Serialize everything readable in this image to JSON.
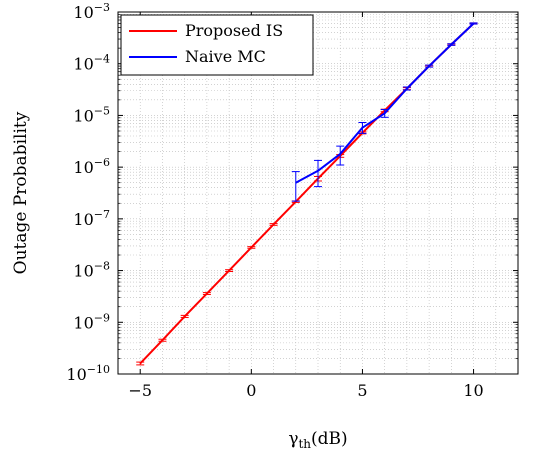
{
  "chart_data": {
    "type": "line",
    "xlabel_main": "γ",
    "xlabel_sub": "th",
    "xlabel_unit": "(dB)",
    "ylabel": "Outage Probability",
    "xlim": [
      -6,
      12
    ],
    "ylim_log10": [
      -10,
      -3
    ],
    "yscale": "log",
    "grid": true,
    "legend_position": "top-left",
    "x_ticks": [
      -5,
      0,
      5,
      10
    ],
    "y_tick_exponents": [
      -10,
      -9,
      -8,
      -7,
      -6,
      -5,
      -4,
      -3
    ],
    "y_tick_base": "10",
    "series": [
      {
        "name": "Proposed IS",
        "color": "#ff0000",
        "x": [
          -5,
          -4,
          -3,
          -2,
          -1,
          0,
          1,
          2,
          3,
          4,
          5,
          6,
          7,
          8,
          9,
          10
        ],
        "y": [
          1.6e-10,
          4.5e-10,
          1.3e-09,
          3.6e-09,
          1e-08,
          2.8e-08,
          7.8e-08,
          2.15e-07,
          6e-07,
          1.65e-06,
          4.6e-06,
          1.25e-05,
          3.3e-05,
          9e-05,
          0.000235,
          0.0006
        ],
        "err_low": [
          1.5e-10,
          4.3e-10,
          1.24e-09,
          3.45e-09,
          9.6e-09,
          2.7e-08,
          7.5e-08,
          2.08e-07,
          5.4e-07,
          1.55e-06,
          4.4e-06,
          1.18e-05,
          3.15e-05,
          8.7e-05,
          0.000228,
          0.000585
        ],
        "err_high": [
          1.7e-10,
          4.7e-10,
          1.36e-09,
          3.75e-09,
          1.04e-08,
          2.9e-08,
          8.1e-08,
          2.22e-07,
          6.6e-07,
          1.75e-06,
          4.8e-06,
          1.32e-05,
          3.45e-05,
          9.3e-05,
          0.000242,
          0.000615
        ]
      },
      {
        "name": "Naive MC",
        "color": "#0000ff",
        "x": [
          2,
          3,
          4,
          5,
          6,
          7,
          8,
          9,
          10
        ],
        "y": [
          5e-07,
          8.5e-07,
          1.8e-06,
          5.8e-06,
          1.1e-05,
          3.3e-05,
          9e-05,
          0.000235,
          0.0006
        ],
        "err_low": [
          2.2e-07,
          4.2e-07,
          1.1e-06,
          4.5e-06,
          9.2e-06,
          3.1e-05,
          8.6e-05,
          0.000227,
          0.000585
        ],
        "err_high": [
          8.2e-07,
          1.35e-06,
          2.55e-06,
          7.3e-06,
          1.3e-05,
          3.55e-05,
          9.4e-05,
          0.000243,
          0.000615
        ]
      }
    ]
  }
}
